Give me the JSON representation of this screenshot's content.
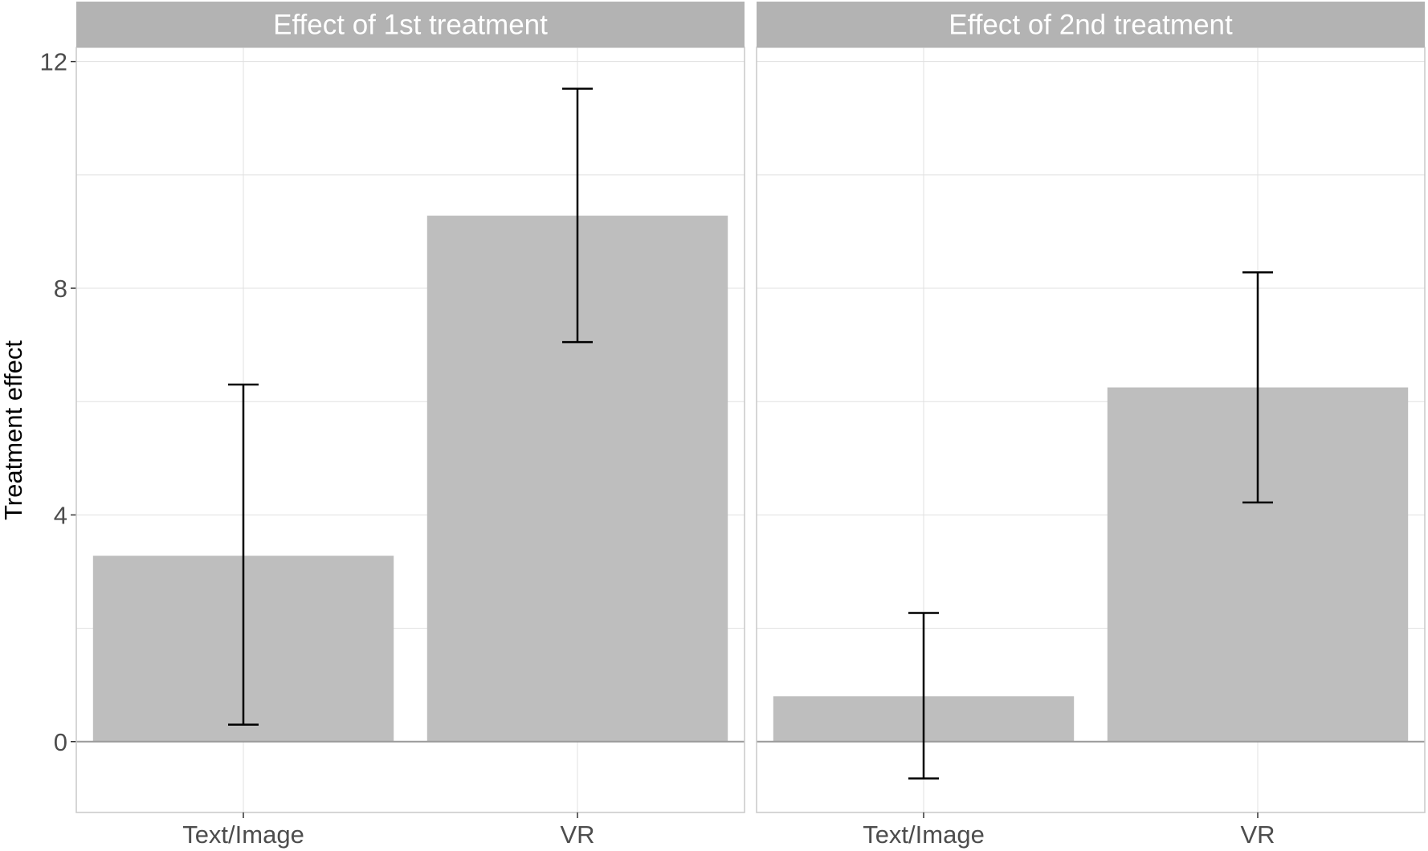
{
  "chart_data": {
    "type": "bar",
    "ylabel": "Treatment effect",
    "xlabel": "",
    "ylim": [
      -1.25,
      12.25
    ],
    "yticks": [
      0,
      4,
      8,
      12
    ],
    "ytick_labels": [
      "0",
      "4",
      "8",
      "12"
    ],
    "grid": true,
    "colors": {
      "bar": "#bebebe",
      "strip": "#b3b3b3",
      "grid": "#e0e0e0",
      "panel_border": "#c8c8c8",
      "zero_line": "#9a9a9a",
      "errorbar": "#000000"
    },
    "panels": [
      {
        "title": "Effect of 1st treatment",
        "categories": [
          "Text/Image",
          "VR"
        ],
        "values": [
          3.28,
          9.28
        ],
        "error_low": [
          0.3,
          7.05
        ],
        "error_high": [
          6.3,
          11.52
        ]
      },
      {
        "title": "Effect of 2nd treatment",
        "categories": [
          "Text/Image",
          "VR"
        ],
        "values": [
          0.8,
          6.25
        ],
        "error_low": [
          -0.65,
          4.22
        ],
        "error_high": [
          2.27,
          8.28
        ]
      }
    ]
  }
}
